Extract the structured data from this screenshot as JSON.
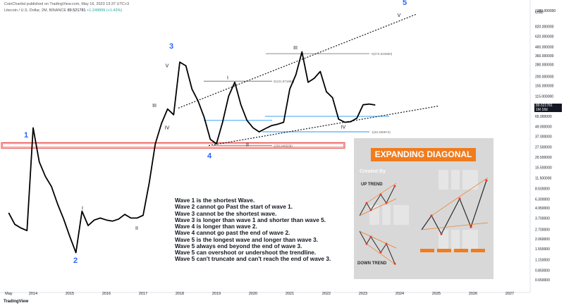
{
  "header": {
    "publisher": "CoinChartist published on TradingView.com, May 16, 2023 13:37 UTC+3",
    "symbol": "Litecoin / U.S. Dollar, 2M, BINANCE",
    "price": "89.521781",
    "change": "+1.249899 (+1.42%)"
  },
  "footer": {
    "brand": "TradingView"
  },
  "colors": {
    "price_line": "#000000",
    "wave_label_blue": "#2962ff",
    "support_box": "#e53935",
    "fib_line_blue": "#2196f3",
    "trendline": "#131722",
    "banner": "#f07c1e"
  },
  "chart_data": {
    "type": "line",
    "scale": "log",
    "x_axis_ticks": [
      "May",
      "2014",
      "2015",
      "2016",
      "2017",
      "2018",
      "2019",
      "2020",
      "2021",
      "2022",
      "2023",
      "2024",
      "2025",
      "2026",
      "2027"
    ],
    "y_axis_unit": "USD",
    "y_axis_ticks": [
      1280,
      820,
      620,
      460,
      360,
      280,
      200,
      155,
      115,
      87,
      65,
      49,
      37,
      27.5,
      20.5,
      15.5,
      11.5,
      8.5,
      6.3,
      4.95,
      3.7,
      2.7,
      2.06,
      1.55,
      1.15,
      0.85,
      0.65
    ],
    "y_axis_tick_labels": [
      "1280.000000",
      "820.000000",
      "620.000000",
      "460.000000",
      "360.000000",
      "280.000000",
      "200.000000",
      "155.000000",
      "115.000000",
      "87.000000",
      "65.000000",
      "49.000000",
      "37.000000",
      "27.500000",
      "20.500000",
      "15.500000",
      "11.500000",
      "8.500000",
      "6.300000",
      "4.950000",
      "3.700000",
      "2.700000",
      "2.060000",
      "1.550000",
      "1.150000",
      "0.850000",
      "0.650000"
    ],
    "ylim": [
      0.55,
      2000
    ],
    "series": [
      {
        "x": [
          "2013-05",
          "2013-07",
          "2013-09",
          "2013-11",
          "2014-01",
          "2014-03",
          "2014-05",
          "2014-07",
          "2014-09",
          "2014-11",
          "2015-01",
          "2015-03",
          "2015-05",
          "2015-07",
          "2015-09",
          "2015-11",
          "2016-01",
          "2016-03",
          "2016-05",
          "2016-07",
          "2016-09",
          "2016-11",
          "2017-01",
          "2017-03",
          "2017-05",
          "2017-07",
          "2017-09",
          "2017-11",
          "2018-01",
          "2018-03",
          "2018-05",
          "2018-07",
          "2018-09",
          "2018-11",
          "2019-01",
          "2019-03",
          "2019-05",
          "2019-07",
          "2019-09",
          "2019-11",
          "2020-01",
          "2020-03",
          "2020-05",
          "2020-07",
          "2020-09",
          "2020-11",
          "2021-01",
          "2021-03",
          "2021-05",
          "2021-07",
          "2021-09",
          "2021-11",
          "2022-01",
          "2022-03",
          "2022-05",
          "2022-07",
          "2022-09",
          "2022-11",
          "2023-01",
          "2023-03",
          "2023-05"
        ],
        "y": [
          4.3,
          3.1,
          2.8,
          2.6,
          47,
          18,
          12,
          9,
          5.5,
          3.6,
          2.2,
          1.4,
          4.5,
          3,
          3.5,
          3.7,
          3.5,
          3.4,
          3.6,
          4.1,
          3.7,
          3.7,
          4.0,
          10,
          30,
          53,
          80,
          68,
          300,
          270,
          140,
          100,
          63,
          34,
          30,
          55,
          115,
          170,
          90,
          58,
          47,
          42,
          46,
          50,
          52,
          55,
          140,
          210,
          400,
          170,
          190,
          230,
          130,
          110,
          60,
          55,
          56,
          62,
          90,
          92,
          89.5
        ]
      }
    ],
    "horizontal_levels": [
      {
        "label": "0(274.623960)",
        "value": 380
      },
      {
        "label": "0(131.971881)",
        "value": 175
      },
      {
        "label": "1(40.336874)",
        "value": 42
      },
      {
        "label": "1(30.046539)",
        "value": 28.5
      }
    ],
    "fib_blue_levels": [
      65,
      58,
      42
    ],
    "support_zone": {
      "low": 26.5,
      "high": 31
    },
    "wave_labels_blue": [
      "1",
      "2",
      "3",
      "4",
      "5"
    ],
    "wave_labels_roman": [
      "I",
      "II",
      "III",
      "IV",
      "V"
    ],
    "current_price": "89.521781",
    "current_price_sub": "1M 18d"
  },
  "rules": [
    "Wave 1 is the shortest Wave.",
    "Wave 2 cannot go Past the start of wave 1.",
    "Wave 3 cannot be the shortest wave.",
    "Wave 3 is longer than wave 1 and shorter than wave 5.",
    "Wave 4 is longer than wave 2.",
    "Wave 4 cannot go past the end of wave 2.",
    "Wave 5 is the longest wave and longer than wave 3.",
    "Wave 5 always end beyond the end of wave 3.",
    "Wave 5 can overshoot or undershoot the trendline.",
    "Wave 5 can't truncate and can't reach the end of wave 3."
  ],
  "infobox": {
    "title": "EXPANDING DIAGONAL",
    "credit": "Created By",
    "up_label": "UP TREND",
    "down_label": "DOWN TREND"
  }
}
